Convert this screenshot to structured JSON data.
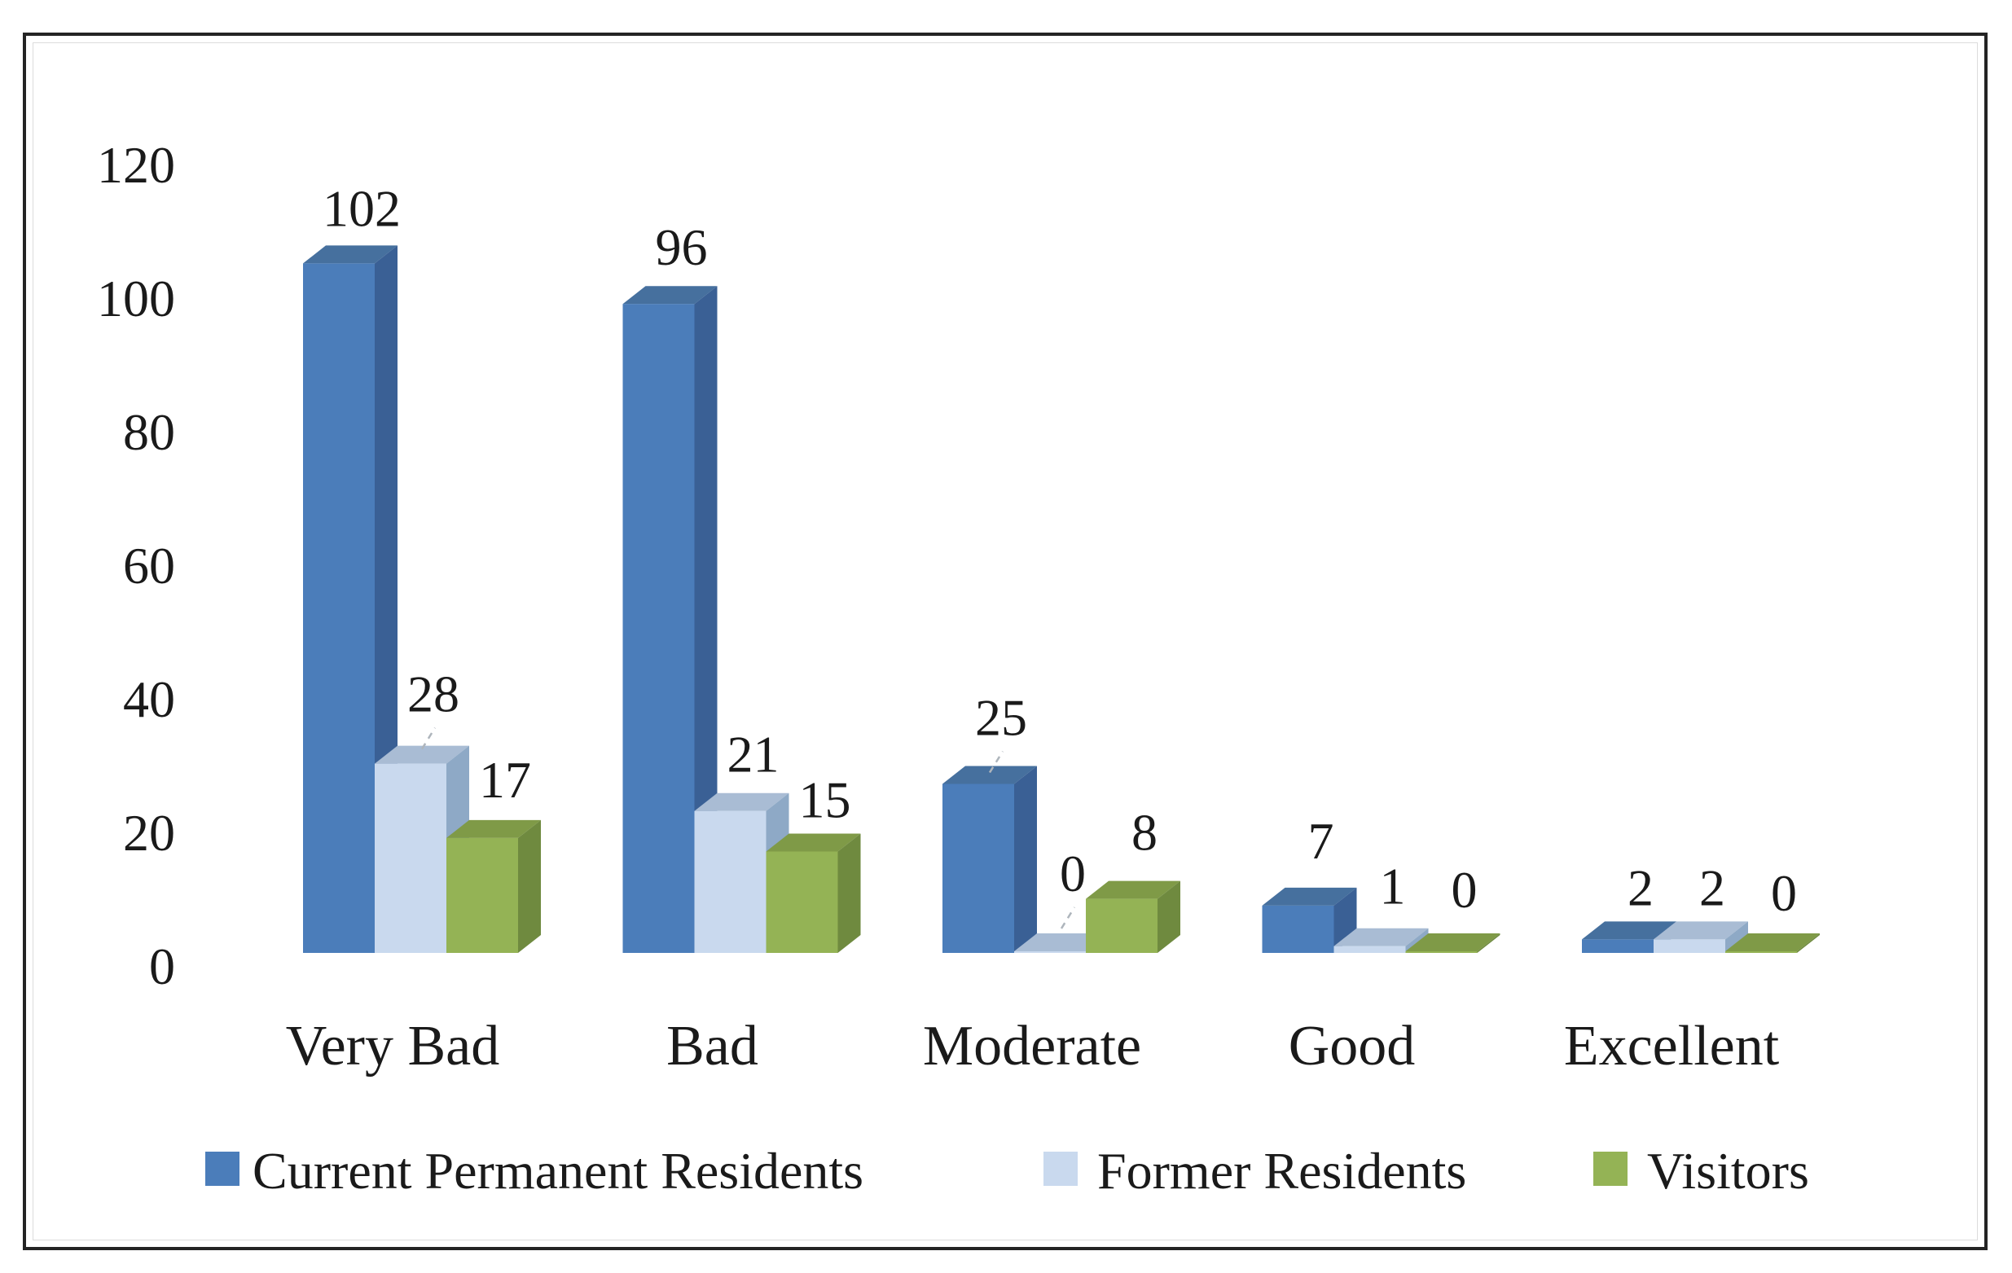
{
  "chart_data": {
    "type": "bar",
    "subtype": "3d-clustered-column",
    "title": "",
    "categories": [
      "Very Bad",
      "Bad",
      "Moderate",
      "Good",
      "Excellent"
    ],
    "series": [
      {
        "name": "Current Permanent Residents",
        "values": [
          102,
          96,
          25,
          7,
          2
        ],
        "colors": {
          "front": "#4b7dba",
          "side": "#3a6095",
          "top": "#46709e"
        }
      },
      {
        "name": "Former Residents",
        "values": [
          28,
          21,
          0,
          1,
          2
        ],
        "colors": {
          "front": "#c9d9ee",
          "side": "#8ea9c6",
          "top": "#a9bcd4"
        }
      },
      {
        "name": "Visitors",
        "values": [
          17,
          15,
          8,
          0,
          0
        ],
        "colors": {
          "front": "#94b355",
          "side": "#6f8a3f",
          "top": "#7f9a47"
        }
      }
    ],
    "y_axis": {
      "min": 0,
      "max": 120,
      "step": 20,
      "ticks": [
        0,
        20,
        40,
        60,
        80,
        100,
        120
      ]
    },
    "data_labels_shown": true,
    "legend_position": "bottom",
    "gridlines": false,
    "text_color": "#1a1a1a",
    "leader_line_color": "#aeb5bc"
  }
}
